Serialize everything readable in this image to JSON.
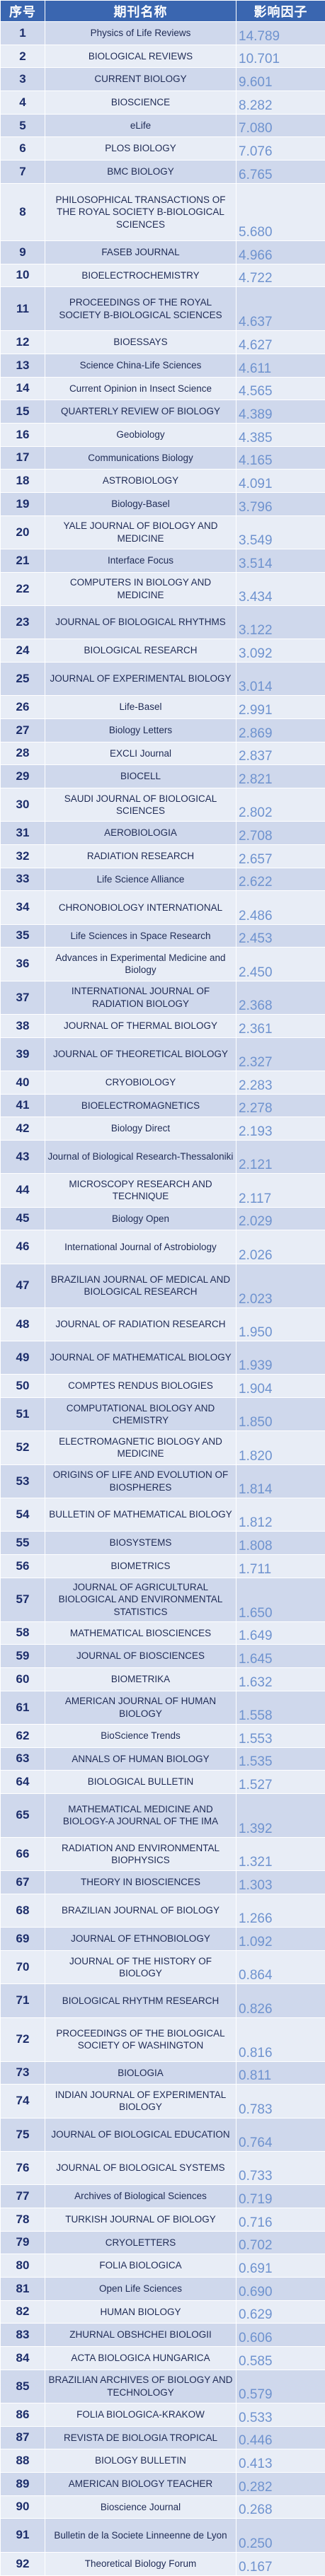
{
  "header": {
    "rank_label": "序号",
    "name_label": "期刊名称",
    "impact_label": "影响因子"
  },
  "rows": [
    {
      "rank": "1",
      "name": "Physics of Life Reviews",
      "impact": "14.789"
    },
    {
      "rank": "2",
      "name": "BIOLOGICAL REVIEWS",
      "impact": "10.701"
    },
    {
      "rank": "3",
      "name": "CURRENT BIOLOGY",
      "impact": "9.601"
    },
    {
      "rank": "4",
      "name": "BIOSCIENCE",
      "impact": "8.282"
    },
    {
      "rank": "5",
      "name": "eLife",
      "impact": "7.080"
    },
    {
      "rank": "6",
      "name": "PLOS BIOLOGY",
      "impact": "7.076"
    },
    {
      "rank": "7",
      "name": "BMC BIOLOGY",
      "impact": "6.765"
    },
    {
      "rank": "8",
      "name": "PHILOSOPHICAL TRANSACTIONS OF THE ROYAL SOCIETY B-BIOLOGICAL SCIENCES",
      "impact": "5.680"
    },
    {
      "rank": "9",
      "name": "FASEB JOURNAL",
      "impact": "4.966"
    },
    {
      "rank": "10",
      "name": "BIOELECTROCHEMISTRY",
      "impact": "4.722"
    },
    {
      "rank": "11",
      "name": "PROCEEDINGS OF THE ROYAL SOCIETY B-BIOLOGICAL SCIENCES",
      "impact": "4.637"
    },
    {
      "rank": "12",
      "name": "BIOESSAYS",
      "impact": "4.627"
    },
    {
      "rank": "13",
      "name": "Science China-Life Sciences",
      "impact": "4.611"
    },
    {
      "rank": "14",
      "name": "Current Opinion in Insect Science",
      "impact": "4.565"
    },
    {
      "rank": "15",
      "name": "QUARTERLY REVIEW OF BIOLOGY",
      "impact": "4.389"
    },
    {
      "rank": "16",
      "name": "Geobiology",
      "impact": "4.385"
    },
    {
      "rank": "17",
      "name": "Communications Biology",
      "impact": "4.165"
    },
    {
      "rank": "18",
      "name": "ASTROBIOLOGY",
      "impact": "4.091"
    },
    {
      "rank": "19",
      "name": "Biology-Basel",
      "impact": "3.796"
    },
    {
      "rank": "20",
      "name": "YALE JOURNAL OF BIOLOGY AND MEDICINE",
      "impact": "3.549"
    },
    {
      "rank": "21",
      "name": "Interface Focus",
      "impact": "3.514"
    },
    {
      "rank": "22",
      "name": "COMPUTERS IN BIOLOGY AND MEDICINE",
      "impact": "3.434"
    },
    {
      "rank": "23",
      "name": "JOURNAL OF BIOLOGICAL RHYTHMS",
      "impact": "3.122"
    },
    {
      "rank": "24",
      "name": "BIOLOGICAL RESEARCH",
      "impact": "3.092"
    },
    {
      "rank": "25",
      "name": "JOURNAL OF EXPERIMENTAL BIOLOGY",
      "impact": "3.014"
    },
    {
      "rank": "26",
      "name": "Life-Basel",
      "impact": "2.991"
    },
    {
      "rank": "27",
      "name": "Biology Letters",
      "impact": "2.869"
    },
    {
      "rank": "28",
      "name": "EXCLI Journal",
      "impact": "2.837"
    },
    {
      "rank": "29",
      "name": "BIOCELL",
      "impact": "2.821"
    },
    {
      "rank": "30",
      "name": "SAUDI JOURNAL OF BIOLOGICAL SCIENCES",
      "impact": "2.802"
    },
    {
      "rank": "31",
      "name": "AEROBIOLOGIA",
      "impact": "2.708"
    },
    {
      "rank": "32",
      "name": "RADIATION RESEARCH",
      "impact": "2.657"
    },
    {
      "rank": "33",
      "name": "Life Science Alliance",
      "impact": "2.622"
    },
    {
      "rank": "34",
      "name": "CHRONOBIOLOGY INTERNATIONAL",
      "impact": "2.486"
    },
    {
      "rank": "35",
      "name": "Life Sciences in Space Research",
      "impact": "2.453"
    },
    {
      "rank": "36",
      "name": "Advances in Experimental Medicine and Biology",
      "impact": "2.450"
    },
    {
      "rank": "37",
      "name": "INTERNATIONAL JOURNAL OF RADIATION BIOLOGY",
      "impact": "2.368"
    },
    {
      "rank": "38",
      "name": "JOURNAL OF THERMAL BIOLOGY",
      "impact": "2.361"
    },
    {
      "rank": "39",
      "name": "JOURNAL OF THEORETICAL BIOLOGY",
      "impact": "2.327"
    },
    {
      "rank": "40",
      "name": "CRYOBIOLOGY",
      "impact": "2.283"
    },
    {
      "rank": "41",
      "name": "BIOELECTROMAGNETICS",
      "impact": "2.278"
    },
    {
      "rank": "42",
      "name": "Biology Direct",
      "impact": "2.193"
    },
    {
      "rank": "43",
      "name": "Journal of Biological Research-Thessaloniki",
      "impact": "2.121"
    },
    {
      "rank": "44",
      "name": "MICROSCOPY RESEARCH AND TECHNIQUE",
      "impact": "2.117"
    },
    {
      "rank": "45",
      "name": "Biology Open",
      "impact": "2.029"
    },
    {
      "rank": "46",
      "name": "International Journal of Astrobiology",
      "impact": "2.026"
    },
    {
      "rank": "47",
      "name": "BRAZILIAN JOURNAL OF MEDICAL AND BIOLOGICAL RESEARCH",
      "impact": "2.023"
    },
    {
      "rank": "48",
      "name": "JOURNAL OF RADIATION RESEARCH",
      "impact": "1.950"
    },
    {
      "rank": "49",
      "name": "JOURNAL OF MATHEMATICAL BIOLOGY",
      "impact": "1.939"
    },
    {
      "rank": "50",
      "name": "COMPTES RENDUS BIOLOGIES",
      "impact": "1.904"
    },
    {
      "rank": "51",
      "name": "COMPUTATIONAL BIOLOGY AND CHEMISTRY",
      "impact": "1.850"
    },
    {
      "rank": "52",
      "name": "ELECTROMAGNETIC BIOLOGY AND MEDICINE",
      "impact": "1.820"
    },
    {
      "rank": "53",
      "name": "ORIGINS OF LIFE AND EVOLUTION OF BIOSPHERES",
      "impact": "1.814"
    },
    {
      "rank": "54",
      "name": "BULLETIN OF MATHEMATICAL BIOLOGY",
      "impact": "1.812"
    },
    {
      "rank": "55",
      "name": "BIOSYSTEMS",
      "impact": "1.808"
    },
    {
      "rank": "56",
      "name": "BIOMETRICS",
      "impact": "1.711"
    },
    {
      "rank": "57",
      "name": "JOURNAL OF AGRICULTURAL BIOLOGICAL AND ENVIRONMENTAL STATISTICS",
      "impact": "1.650"
    },
    {
      "rank": "58",
      "name": "MATHEMATICAL BIOSCIENCES",
      "impact": "1.649"
    },
    {
      "rank": "59",
      "name": "JOURNAL OF BIOSCIENCES",
      "impact": "1.645"
    },
    {
      "rank": "60",
      "name": "BIOMETRIKA",
      "impact": "1.632"
    },
    {
      "rank": "61",
      "name": "AMERICAN JOURNAL OF HUMAN BIOLOGY",
      "impact": "1.558"
    },
    {
      "rank": "62",
      "name": "BioScience Trends",
      "impact": "1.553"
    },
    {
      "rank": "63",
      "name": "ANNALS OF HUMAN BIOLOGY",
      "impact": "1.535"
    },
    {
      "rank": "64",
      "name": "BIOLOGICAL BULLETIN",
      "impact": "1.527"
    },
    {
      "rank": "65",
      "name": "MATHEMATICAL MEDICINE AND BIOLOGY-A JOURNAL OF THE IMA",
      "impact": "1.392"
    },
    {
      "rank": "66",
      "name": "RADIATION AND ENVIRONMENTAL BIOPHYSICS",
      "impact": "1.321"
    },
    {
      "rank": "67",
      "name": "THEORY IN BIOSCIENCES",
      "impact": "1.303"
    },
    {
      "rank": "68",
      "name": "BRAZILIAN JOURNAL OF BIOLOGY",
      "impact": "1.266"
    },
    {
      "rank": "69",
      "name": "JOURNAL OF ETHNOBIOLOGY",
      "impact": "1.092"
    },
    {
      "rank": "70",
      "name": "JOURNAL OF THE HISTORY OF BIOLOGY",
      "impact": "0.864"
    },
    {
      "rank": "71",
      "name": "BIOLOGICAL RHYTHM RESEARCH",
      "impact": "0.826"
    },
    {
      "rank": "72",
      "name": "PROCEEDINGS OF THE BIOLOGICAL SOCIETY OF WASHINGTON",
      "impact": "0.816"
    },
    {
      "rank": "73",
      "name": "BIOLOGIA",
      "impact": "0.811"
    },
    {
      "rank": "74",
      "name": "INDIAN JOURNAL OF EXPERIMENTAL BIOLOGY",
      "impact": "0.783"
    },
    {
      "rank": "75",
      "name": "JOURNAL OF BIOLOGICAL EDUCATION",
      "impact": "0.764"
    },
    {
      "rank": "76",
      "name": "JOURNAL OF BIOLOGICAL SYSTEMS",
      "impact": "0.733"
    },
    {
      "rank": "77",
      "name": "Archives of Biological Sciences",
      "impact": "0.719"
    },
    {
      "rank": "78",
      "name": "TURKISH JOURNAL OF BIOLOGY",
      "impact": "0.716"
    },
    {
      "rank": "79",
      "name": "CRYOLETTERS",
      "impact": "0.702"
    },
    {
      "rank": "80",
      "name": "FOLIA BIOLOGICA",
      "impact": "0.691"
    },
    {
      "rank": "81",
      "name": "Open Life Sciences",
      "impact": "0.690"
    },
    {
      "rank": "82",
      "name": "HUMAN BIOLOGY",
      "impact": "0.629"
    },
    {
      "rank": "83",
      "name": "ZHURNAL OBSHCHEI BIOLOGII",
      "impact": "0.606"
    },
    {
      "rank": "84",
      "name": "ACTA BIOLOGICA HUNGARICA",
      "impact": "0.585"
    },
    {
      "rank": "85",
      "name": "BRAZILIAN ARCHIVES OF BIOLOGY AND TECHNOLOGY",
      "impact": "0.579"
    },
    {
      "rank": "86",
      "name": "FOLIA BIOLOGICA-KRAKOW",
      "impact": "0.533"
    },
    {
      "rank": "87",
      "name": "REVISTA DE BIOLOGIA TROPICAL",
      "impact": "0.446"
    },
    {
      "rank": "88",
      "name": "BIOLOGY BULLETIN",
      "impact": "0.413"
    },
    {
      "rank": "89",
      "name": "AMERICAN BIOLOGY TEACHER",
      "impact": "0.282"
    },
    {
      "rank": "90",
      "name": "Bioscience Journal",
      "impact": "0.268"
    },
    {
      "rank": "91",
      "name": "Bulletin de la Societe Linneenne de Lyon",
      "impact": "0.250"
    },
    {
      "rank": "92",
      "name": "Theoretical Biology Forum",
      "impact": "0.167"
    }
  ]
}
